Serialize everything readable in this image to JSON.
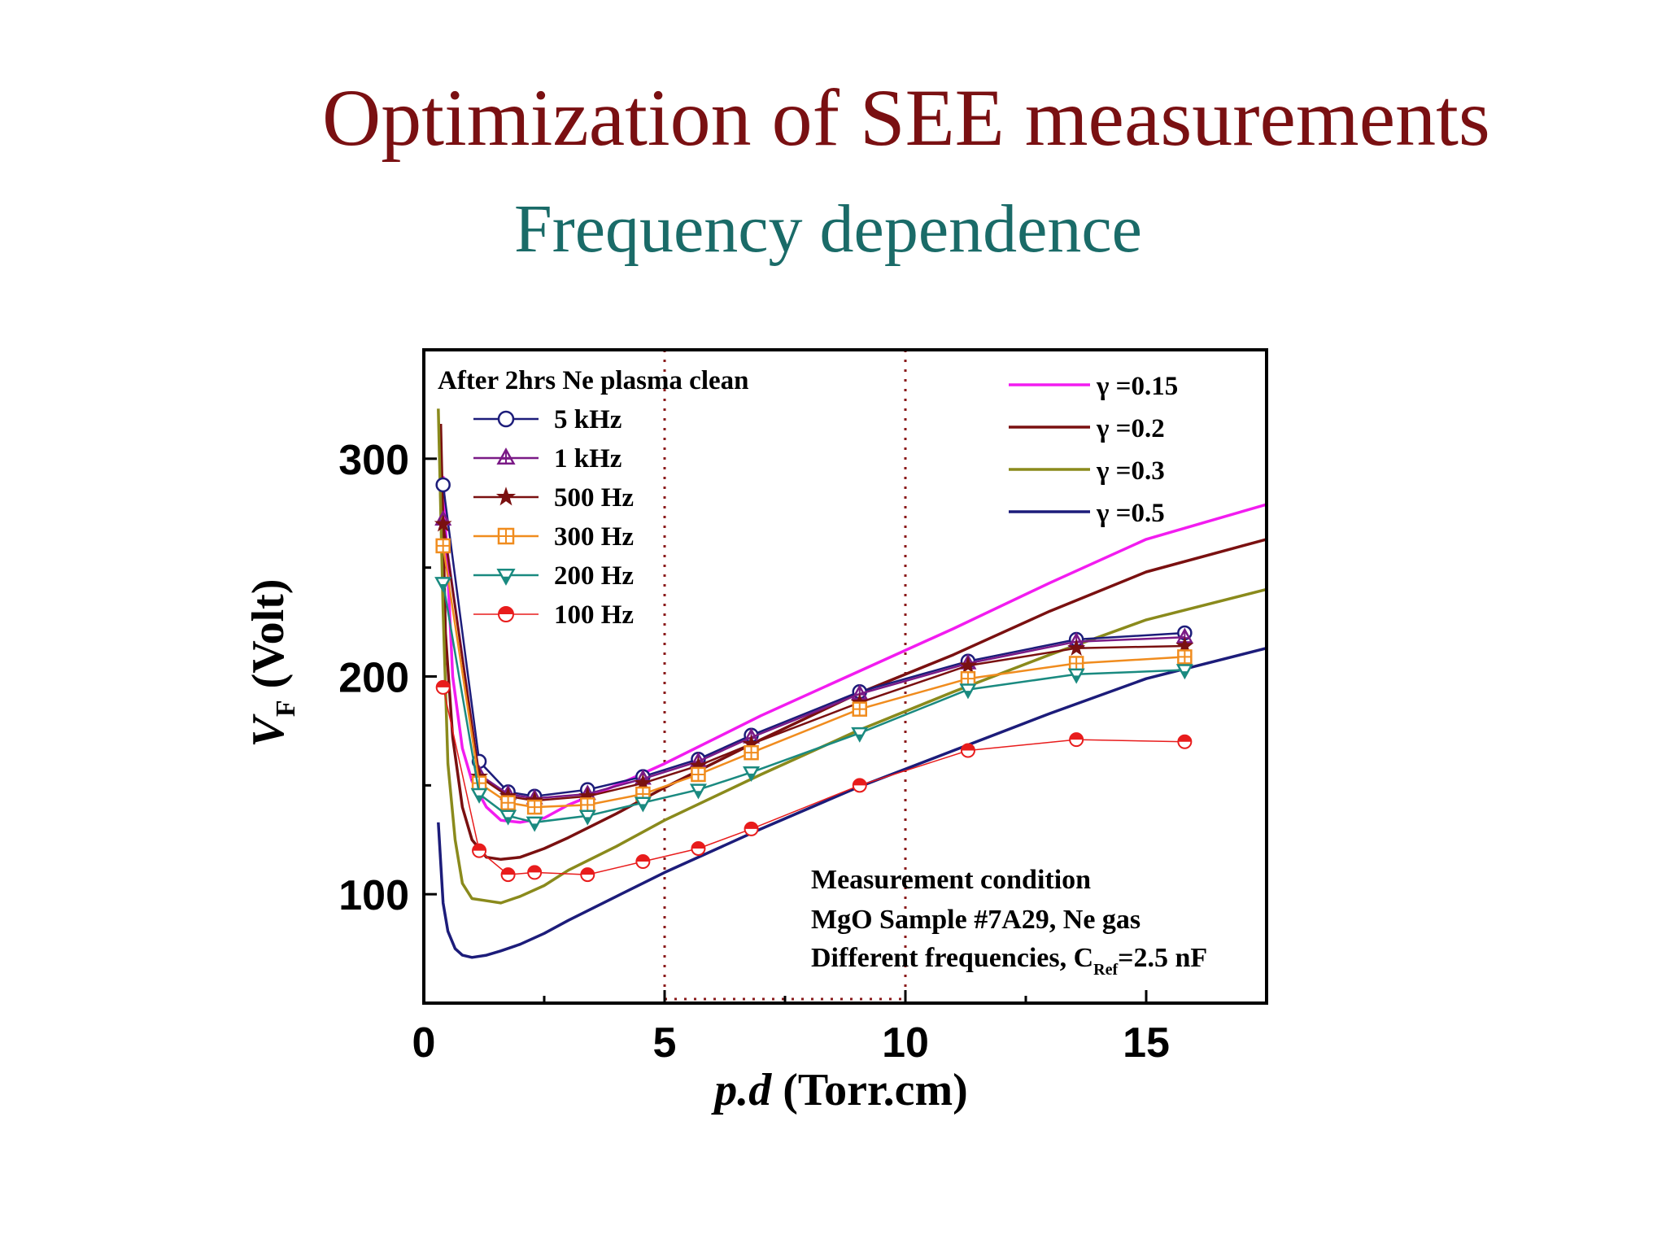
{
  "slide": {
    "title": "Optimization of SEE measurements",
    "subtitle": "Frequency dependence"
  },
  "chart_data": {
    "type": "line",
    "xlabel": {
      "italic": "p.d",
      "rest": " (Torr.cm)"
    },
    "ylabel": {
      "main": "V",
      "sub": "F",
      "rest": " (Volt)"
    },
    "xlim": [
      0,
      17.5
    ],
    "ylim": [
      50,
      350
    ],
    "xticks": [
      0,
      5,
      10,
      15
    ],
    "yticks": [
      100,
      200,
      300
    ],
    "minor_xticks": [
      2.5,
      7.5,
      12.5
    ],
    "minor_yticks": [
      150,
      250
    ],
    "grid": false,
    "legend_measured_title": "After 2hrs Ne plasma clean",
    "measured": [
      {
        "name": "5 kHz",
        "marker": "circle",
        "color": "#1c1c7a",
        "x": [
          0.4,
          1.15,
          1.75,
          2.3,
          3.4,
          4.55,
          5.7,
          6.8,
          9.05,
          11.3,
          13.55,
          15.8
        ],
        "y": [
          288,
          161,
          147,
          145,
          148,
          154,
          162,
          173,
          193,
          207,
          217,
          220
        ]
      },
      {
        "name": "1 kHz",
        "marker": "triangle-up",
        "color": "#7a1a86",
        "x": [
          0.4,
          1.15,
          1.75,
          2.3,
          3.4,
          4.55,
          5.7,
          6.8,
          9.05,
          11.3,
          13.55,
          15.8
        ],
        "y": [
          272,
          155,
          146,
          144,
          146,
          153,
          161,
          172,
          192,
          206,
          216,
          218
        ]
      },
      {
        "name": "500 Hz",
        "marker": "star",
        "color": "#7a1010",
        "x": [
          0.4,
          1.15,
          1.75,
          2.3,
          3.4,
          4.55,
          5.7,
          6.8,
          9.05,
          11.3,
          13.55,
          15.8
        ],
        "y": [
          270,
          154,
          145,
          143,
          145,
          151,
          159,
          169,
          188,
          205,
          213,
          214
        ]
      },
      {
        "name": "300 Hz",
        "marker": "square-plus",
        "color": "#f08c1e",
        "x": [
          0.4,
          1.15,
          1.75,
          2.3,
          3.4,
          4.55,
          5.7,
          6.8,
          9.05,
          11.3,
          13.55,
          15.8
        ],
        "y": [
          260,
          151,
          142,
          140,
          141,
          146,
          155,
          165,
          185,
          199,
          206,
          209
        ]
      },
      {
        "name": "200 Hz",
        "marker": "triangle-down",
        "color": "#1a8a80",
        "x": [
          0.4,
          1.15,
          1.75,
          2.3,
          3.4,
          4.55,
          5.7,
          6.8,
          9.05,
          11.3,
          13.55,
          15.8
        ],
        "y": [
          243,
          146,
          136,
          133,
          136,
          142,
          148,
          156,
          174,
          194,
          201,
          203
        ]
      },
      {
        "name": "100 Hz",
        "marker": "half-circle",
        "color": "#e81c1c",
        "x": [
          0.4,
          1.15,
          1.75,
          2.3,
          3.4,
          4.55,
          5.7,
          6.8,
          9.05,
          11.3,
          13.55,
          15.8
        ],
        "y": [
          195,
          120,
          109,
          110,
          109,
          115,
          121,
          130,
          150,
          166,
          171,
          170
        ]
      }
    ],
    "legend_model": [
      {
        "name": "γ =0.15",
        "color": "#f21cf0",
        "x": [
          0.4,
          0.6,
          0.8,
          1.0,
          1.3,
          1.6,
          2.0,
          2.5,
          3.0,
          4.0,
          5.0,
          7.0,
          9.0,
          11.0,
          13.0,
          15.0,
          17.5
        ],
        "y": [
          292,
          200,
          167,
          152,
          140,
          134,
          133,
          135,
          141,
          150,
          160,
          182,
          202,
          222,
          243,
          263,
          279
        ]
      },
      {
        "name": "γ =0.2",
        "color": "#7a1010",
        "x": [
          0.35,
          0.45,
          0.6,
          0.8,
          1.0,
          1.3,
          1.6,
          2.0,
          2.5,
          3.0,
          4.0,
          5.0,
          7.0,
          9.0,
          11.0,
          13.0,
          15.0,
          17.5
        ],
        "y": [
          316,
          220,
          172,
          140,
          125,
          117,
          116,
          117,
          121,
          126,
          137,
          149,
          171,
          192,
          210,
          230,
          248,
          263
        ]
      },
      {
        "name": "γ =0.3",
        "color": "#8a8a1c",
        "x": [
          0.3,
          0.4,
          0.5,
          0.65,
          0.8,
          1.0,
          1.3,
          1.6,
          2.0,
          2.5,
          3.0,
          4.0,
          5.0,
          7.0,
          9.0,
          11.0,
          13.0,
          15.0,
          17.5
        ],
        "y": [
          323,
          230,
          160,
          125,
          105,
          98,
          97,
          96,
          99,
          104,
          111,
          122,
          134,
          155,
          175,
          193,
          210,
          226,
          240
        ]
      },
      {
        "name": "γ =0.5",
        "color": "#1c1c7a",
        "x": [
          0.3,
          0.4,
          0.5,
          0.65,
          0.8,
          1.0,
          1.3,
          1.6,
          2.0,
          2.5,
          3.0,
          4.0,
          5.0,
          7.0,
          9.0,
          11.0,
          13.0,
          15.0,
          17.5
        ],
        "y": [
          133,
          96,
          83,
          75,
          72,
          71,
          72,
          74,
          77,
          82,
          88,
          99,
          110,
          130,
          149,
          166,
          183,
          199,
          213
        ]
      }
    ],
    "highlight_region": {
      "x": [
        5,
        10
      ]
    },
    "annotation": {
      "line1": "Measurement condition",
      "line2": "MgO Sample #7A29, Ne gas",
      "line3_main": "Different frequencies, C",
      "line3_sub": "Ref",
      "line3_rest": "=2.5 nF"
    }
  }
}
